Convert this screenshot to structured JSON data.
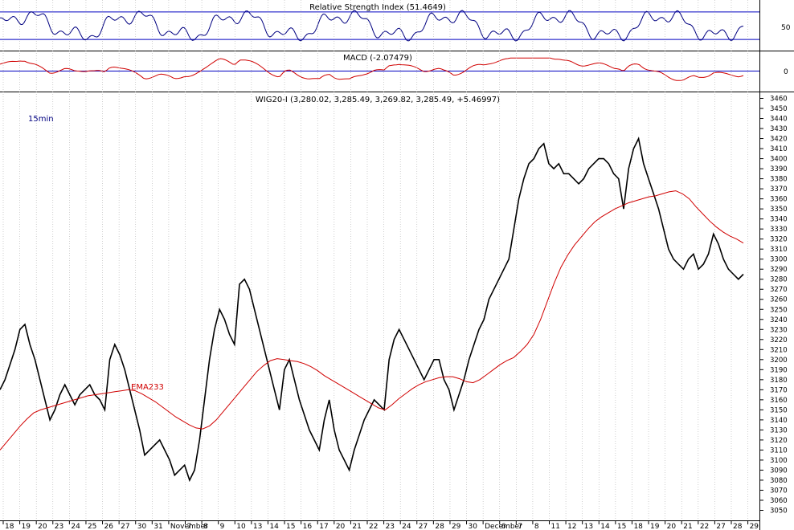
{
  "chart_data": [
    {
      "panel": "rsi",
      "type": "line",
      "title": "Relative Strength Index (51.4649)",
      "series": [
        {
          "name": "Relative Strength Index",
          "color": "#000080"
        }
      ],
      "levels": [
        70,
        30
      ],
      "ylim": [
        15,
        85
      ],
      "y_ticks": [
        50
      ],
      "y_tick_labels": [
        "50"
      ],
      "grid": true
    },
    {
      "panel": "macd",
      "type": "line",
      "title": "MACD (-2.07479)",
      "series": [
        {
          "name": "MACD",
          "color": "#d00000"
        }
      ],
      "levels": [
        0
      ],
      "ylim": [
        -60,
        60
      ],
      "y_ticks": [
        0
      ],
      "y_tick_labels": [
        "0"
      ],
      "grid": true
    },
    {
      "panel": "price",
      "type": "line",
      "title": "WIG20-I (3,280.02, 3,285.49, 3,269.82, 3,285.49, +5.46997)",
      "timeframe_label": "15min",
      "ylim": [
        3040,
        3466
      ],
      "y_ticks": [
        3050,
        3060,
        3070,
        3080,
        3090,
        3100,
        3110,
        3120,
        3130,
        3140,
        3150,
        3160,
        3170,
        3180,
        3190,
        3200,
        3210,
        3220,
        3230,
        3240,
        3250,
        3260,
        3270,
        3280,
        3290,
        3300,
        3310,
        3320,
        3330,
        3340,
        3350,
        3360,
        3370,
        3380,
        3390,
        3400,
        3410,
        3420,
        3430,
        3440,
        3450,
        3460
      ],
      "grid": true,
      "x_labels": [
        "18",
        "19",
        "20",
        "23",
        "24",
        "25",
        "26",
        "27",
        "30",
        "31",
        "November",
        "7",
        "8",
        "9",
        "10",
        "13",
        "14",
        "15",
        "16",
        "17",
        "20",
        "21",
        "22",
        "23",
        "24",
        "27",
        "28",
        "29",
        "30",
        "December",
        "6",
        "7",
        "8",
        "11",
        "12",
        "13",
        "14",
        "15",
        "18",
        "19",
        "20",
        "21",
        "22",
        "27",
        "28",
        "29"
      ],
      "series": [
        {
          "name": "WIG20-I",
          "color": "#000000",
          "values": [
            3170,
            3180,
            3195,
            3210,
            3230,
            3235,
            3215,
            3200,
            3180,
            3160,
            3140,
            3150,
            3165,
            3175,
            3165,
            3155,
            3165,
            3170,
            3175,
            3165,
            3160,
            3150,
            3200,
            3215,
            3205,
            3190,
            3170,
            3150,
            3130,
            3105,
            3110,
            3115,
            3120,
            3110,
            3100,
            3085,
            3090,
            3095,
            3080,
            3090,
            3120,
            3160,
            3200,
            3230,
            3250,
            3240,
            3225,
            3215,
            3275,
            3280,
            3270,
            3250,
            3230,
            3210,
            3190,
            3170,
            3150,
            3190,
            3200,
            3180,
            3160,
            3145,
            3130,
            3120,
            3110,
            3140,
            3160,
            3130,
            3110,
            3100,
            3090,
            3110,
            3125,
            3140,
            3150,
            3160,
            3155,
            3150,
            3200,
            3220,
            3230,
            3220,
            3210,
            3200,
            3190,
            3180,
            3190,
            3200,
            3200,
            3180,
            3170,
            3150,
            3165,
            3180,
            3200,
            3215,
            3230,
            3240,
            3260,
            3270,
            3280,
            3290,
            3300,
            3330,
            3360,
            3380,
            3395,
            3400,
            3410,
            3415,
            3395,
            3390,
            3395,
            3385,
            3385,
            3380,
            3375,
            3380,
            3390,
            3395,
            3400,
            3400,
            3395,
            3385,
            3380,
            3350,
            3390,
            3410,
            3420,
            3395,
            3380,
            3365,
            3350,
            3330,
            3310,
            3300,
            3295,
            3290,
            3300,
            3305,
            3290,
            3295,
            3305,
            3325,
            3315,
            3300,
            3290,
            3285,
            3280,
            3285
          ]
        },
        {
          "name": "EMA233",
          "label": "EMA233",
          "color": "#d00000",
          "values": [
            3110,
            3118,
            3126,
            3134,
            3141,
            3147,
            3150,
            3152,
            3154,
            3156,
            3158,
            3160,
            3162,
            3164,
            3165,
            3166,
            3167,
            3168,
            3169,
            3170,
            3169,
            3166,
            3162,
            3158,
            3153,
            3148,
            3143,
            3139,
            3135,
            3132,
            3131,
            3134,
            3140,
            3148,
            3156,
            3164,
            3172,
            3180,
            3188,
            3194,
            3199,
            3201,
            3200,
            3199,
            3198,
            3196,
            3193,
            3189,
            3184,
            3180,
            3176,
            3172,
            3168,
            3164,
            3160,
            3156,
            3152,
            3150,
            3155,
            3161,
            3166,
            3171,
            3175,
            3178,
            3180,
            3182,
            3183,
            3183,
            3181,
            3178,
            3177,
            3180,
            3185,
            3190,
            3195,
            3199,
            3202,
            3208,
            3215,
            3225,
            3240,
            3258,
            3276,
            3292,
            3304,
            3314,
            3322,
            3330,
            3337,
            3342,
            3346,
            3350,
            3353,
            3356,
            3358,
            3360,
            3362,
            3363,
            3365,
            3367,
            3368,
            3365,
            3360,
            3352,
            3345,
            3338,
            3332,
            3327,
            3323,
            3320,
            3316
          ]
        }
      ]
    }
  ]
}
